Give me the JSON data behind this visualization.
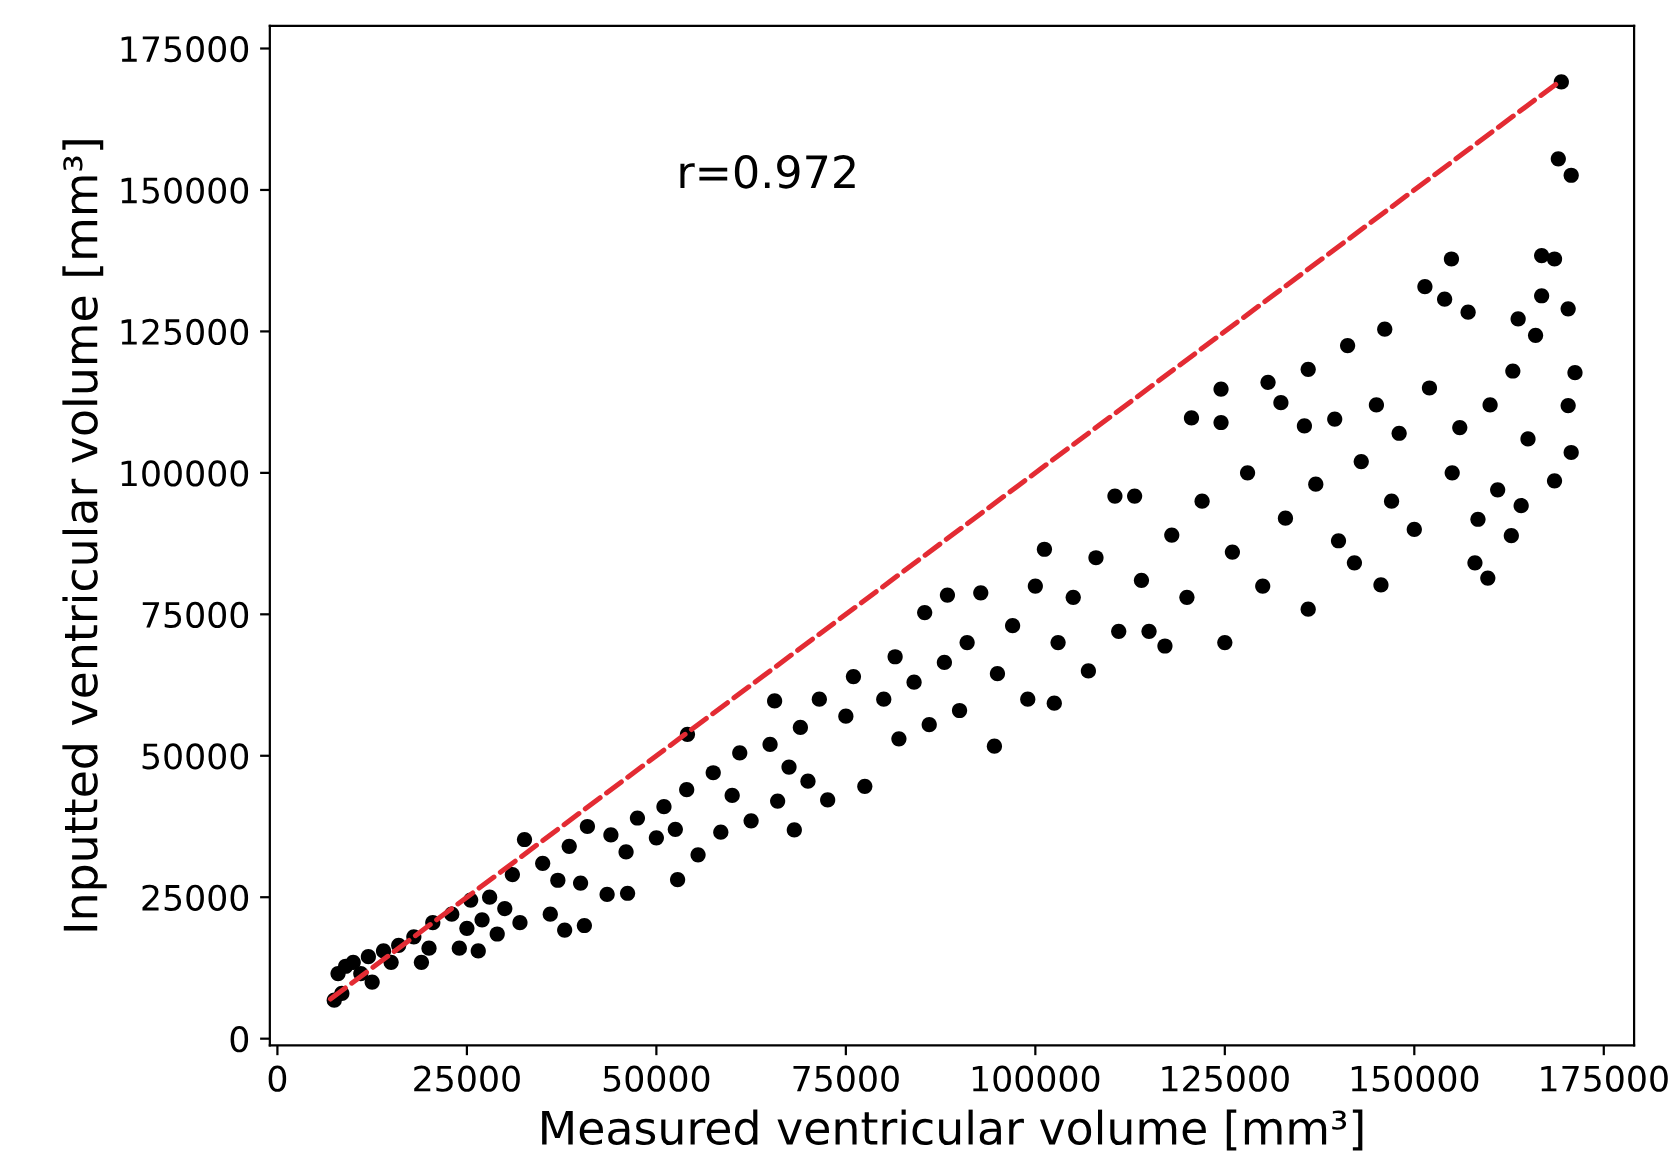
{
  "chart_data": {
    "type": "scatter",
    "xlabel": "Measured ventricular volume [mm³]",
    "ylabel": "Inputted ventricular volume [mm³]",
    "annotations": [
      "r=0.972"
    ],
    "xlim": [
      -1000,
      179000
    ],
    "ylim": [
      -1200,
      179000
    ],
    "xticks": [
      0,
      25000,
      50000,
      75000,
      100000,
      125000,
      150000,
      175000
    ],
    "yticks": [
      0,
      25000,
      50000,
      75000,
      100000,
      125000,
      150000,
      175000
    ],
    "series": [
      {
        "color": "#000000",
        "marker": "circle",
        "x": [
          7500,
          8000,
          8500,
          9000,
          10000,
          11000,
          12000,
          12500,
          14000,
          15000,
          16000,
          18000,
          19000,
          20000,
          20500,
          23000,
          24000,
          25000,
          25500,
          26500,
          27000,
          28000,
          29000,
          30000,
          31000,
          32000,
          32600,
          35000,
          36000,
          37000,
          37900,
          38500,
          40000,
          40500,
          40900,
          43500,
          44000,
          46000,
          46200,
          47500,
          50000,
          51000,
          52500,
          52800,
          54000,
          54100,
          55500,
          57500,
          58500,
          60000,
          61000,
          62500,
          65000,
          65600,
          66000,
          67500,
          68200,
          69000,
          70000,
          71500,
          72600,
          75000,
          76000,
          77500,
          80000,
          81500,
          82000,
          84000,
          85400,
          86000,
          88000,
          88400,
          90000,
          91000,
          92800,
          94600,
          95000,
          97000,
          99000,
          100000,
          101200,
          102500,
          103000,
          105000,
          107000,
          108000,
          110500,
          111000,
          113100,
          114000,
          115000,
          117100,
          118000,
          120000,
          120600,
          122000,
          124500,
          124500,
          125000,
          126000,
          128000,
          130000,
          130700,
          132400,
          133000,
          135500,
          136000,
          136000,
          137000,
          139500,
          140000,
          141200,
          142100,
          143000,
          145000,
          145600,
          146100,
          147000,
          148000,
          150000,
          151400,
          152000,
          154000,
          154900,
          155000,
          156000,
          157100,
          158000,
          158400,
          159700,
          160000,
          161000,
          162800,
          163000,
          163700,
          164100,
          165000,
          166000,
          166800,
          166800,
          168500,
          168500,
          169000,
          169400,
          170300,
          170300,
          170700,
          170700,
          171200
        ],
        "values": [
          6800,
          11500,
          8000,
          12800,
          13500,
          11500,
          14500,
          10000,
          15500,
          13500,
          16500,
          18000,
          13500,
          16000,
          20500,
          22000,
          16000,
          19500,
          24500,
          15500,
          21000,
          25000,
          18500,
          23000,
          29000,
          20500,
          35200,
          31000,
          22000,
          28000,
          19200,
          34000,
          27500,
          20000,
          37500,
          25500,
          36000,
          33000,
          25700,
          39000,
          35500,
          41000,
          37000,
          28100,
          44000,
          53800,
          32500,
          47000,
          36500,
          43000,
          50500,
          38500,
          52000,
          59700,
          42000,
          48000,
          36900,
          55000,
          45500,
          60000,
          42200,
          57000,
          64000,
          44600,
          60000,
          67500,
          53000,
          63000,
          75300,
          55500,
          66500,
          78400,
          58000,
          70000,
          78800,
          51700,
          64500,
          73000,
          60000,
          80000,
          86500,
          59300,
          70000,
          78000,
          65000,
          85000,
          95900,
          72000,
          95900,
          81000,
          72000,
          69400,
          89000,
          78000,
          109700,
          95000,
          108900,
          114800,
          70000,
          86000,
          100000,
          80000,
          116000,
          112400,
          92000,
          108300,
          75900,
          118300,
          98000,
          109500,
          88000,
          122500,
          84100,
          102000,
          112000,
          80200,
          125400,
          95000,
          107000,
          90000,
          132900,
          115000,
          130700,
          137800,
          100000,
          108000,
          128400,
          84100,
          91800,
          81400,
          112000,
          97000,
          88900,
          118000,
          127200,
          94200,
          106000,
          124300,
          131300,
          138400,
          137800,
          98600,
          155500,
          169100,
          129000,
          111900,
          152600,
          103600,
          117700
        ]
      },
      {
        "type": "line",
        "color": "#e32b33",
        "line_style": "dashed",
        "x": [
          7000,
          169000
        ],
        "values": [
          7000,
          169000
        ]
      }
    ]
  }
}
